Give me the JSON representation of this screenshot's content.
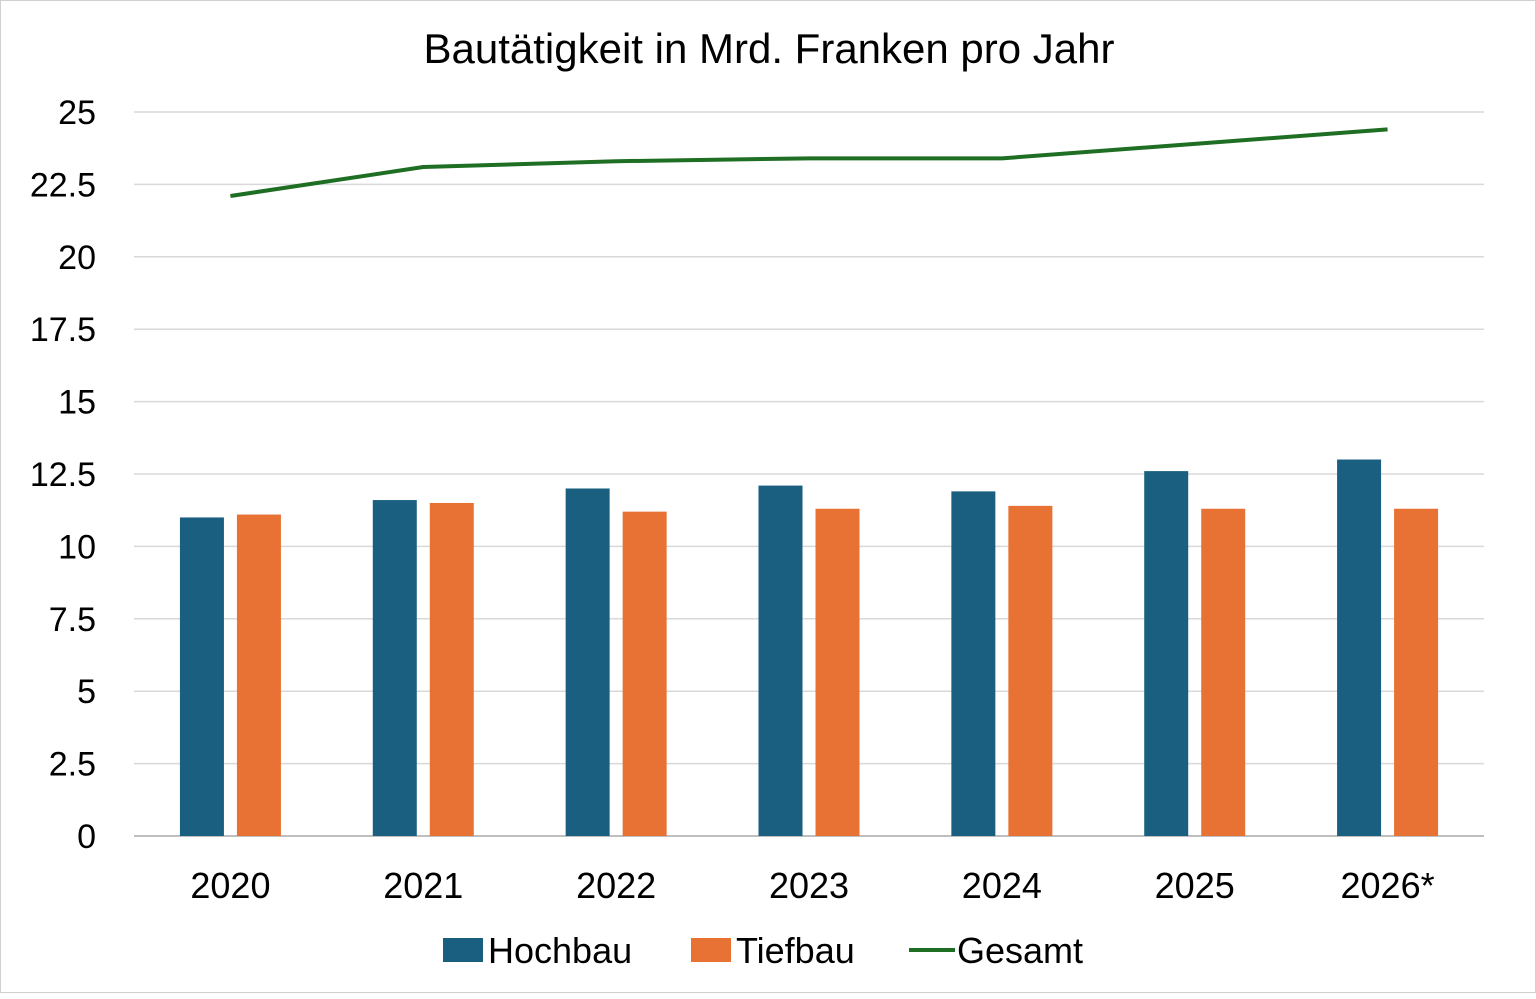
{
  "chart_data": {
    "type": "bar",
    "title": "Bautätigkeit in Mrd. Franken pro Jahr",
    "xlabel": "",
    "ylabel": "",
    "categories": [
      "2020",
      "2021",
      "2022",
      "2023",
      "2024",
      "2025",
      "2026*"
    ],
    "ylim": [
      0,
      25
    ],
    "yticks": [
      "0",
      "2.5",
      "5",
      "7.5",
      "10",
      "12.5",
      "15",
      "17.5",
      "20",
      "22.5",
      "25"
    ],
    "grid": true,
    "legend_position": "bottom",
    "series": [
      {
        "name": "Hochbau",
        "type": "bar",
        "color": "#1a5f80",
        "values": [
          11.0,
          11.6,
          12.0,
          12.1,
          11.9,
          12.6,
          13.0
        ]
      },
      {
        "name": "Tiefbau",
        "type": "bar",
        "color": "#e87234",
        "values": [
          11.1,
          11.5,
          11.2,
          11.3,
          11.4,
          11.3,
          11.3
        ]
      },
      {
        "name": "Gesamt",
        "type": "line",
        "color": "#1e6e23",
        "values": [
          22.1,
          23.1,
          23.3,
          23.4,
          23.4,
          23.9,
          24.4
        ]
      }
    ]
  }
}
